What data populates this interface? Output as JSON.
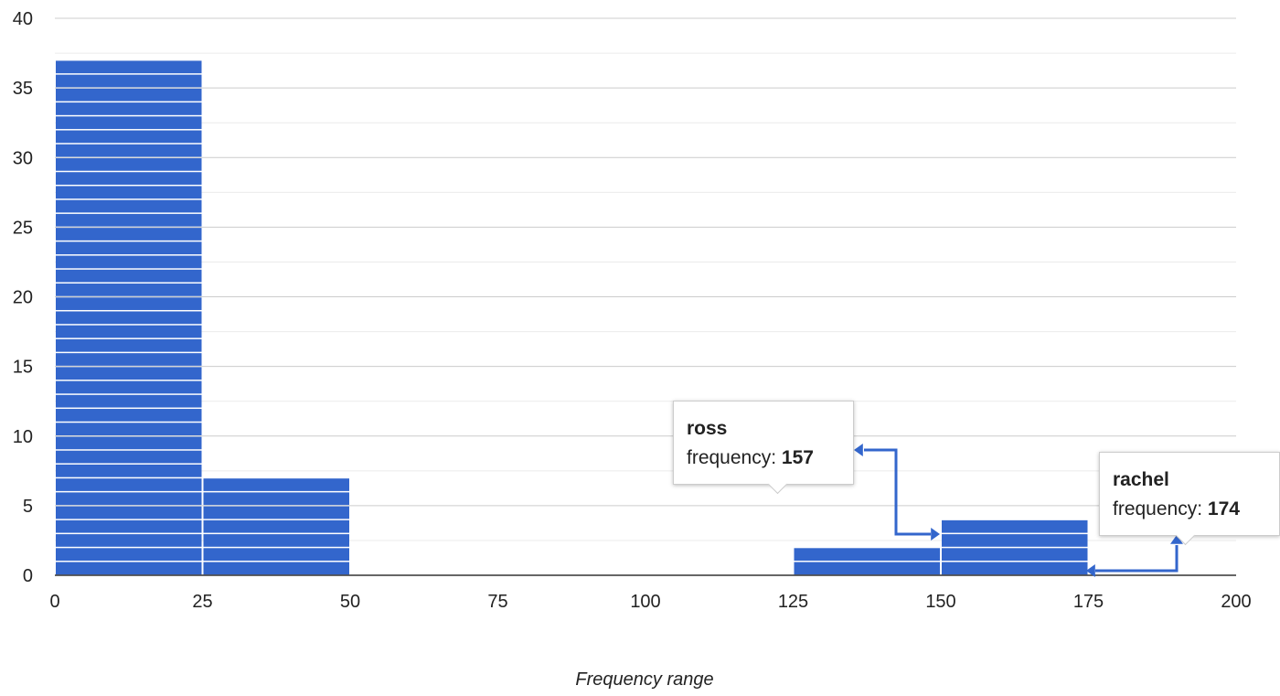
{
  "chart_data": {
    "type": "bar",
    "subtype": "histogram-stacked-items",
    "title": "",
    "xlabel": "Frequency range",
    "ylabel": "",
    "xlim": [
      0,
      200
    ],
    "ylim": [
      0,
      40
    ],
    "x_ticks": [
      "0",
      "25",
      "50",
      "75",
      "100",
      "125",
      "150",
      "175",
      "200"
    ],
    "y_ticks": [
      "0",
      "5",
      "10",
      "15",
      "20",
      "25",
      "30",
      "35",
      "40"
    ],
    "grid": true,
    "legend": "none",
    "bins": [
      {
        "x0": 0,
        "x1": 25,
        "count": 37
      },
      {
        "x0": 25,
        "x1": 50,
        "count": 7
      },
      {
        "x0": 50,
        "x1": 75,
        "count": 0
      },
      {
        "x0": 75,
        "x1": 100,
        "count": 0
      },
      {
        "x0": 100,
        "x1": 125,
        "count": 0
      },
      {
        "x0": 125,
        "x1": 150,
        "count": 2
      },
      {
        "x0": 150,
        "x1": 175,
        "count": 4
      },
      {
        "x0": 175,
        "x1": 200,
        "count": 0
      }
    ],
    "colors": {
      "bar": "#3366cc",
      "grid": "#cccccc",
      "axis": "#333333"
    },
    "annotations": [
      {
        "name": "ross",
        "label": "frequency:",
        "value": "157"
      },
      {
        "name": "rachel",
        "label": "frequency:",
        "value": "174"
      }
    ]
  }
}
